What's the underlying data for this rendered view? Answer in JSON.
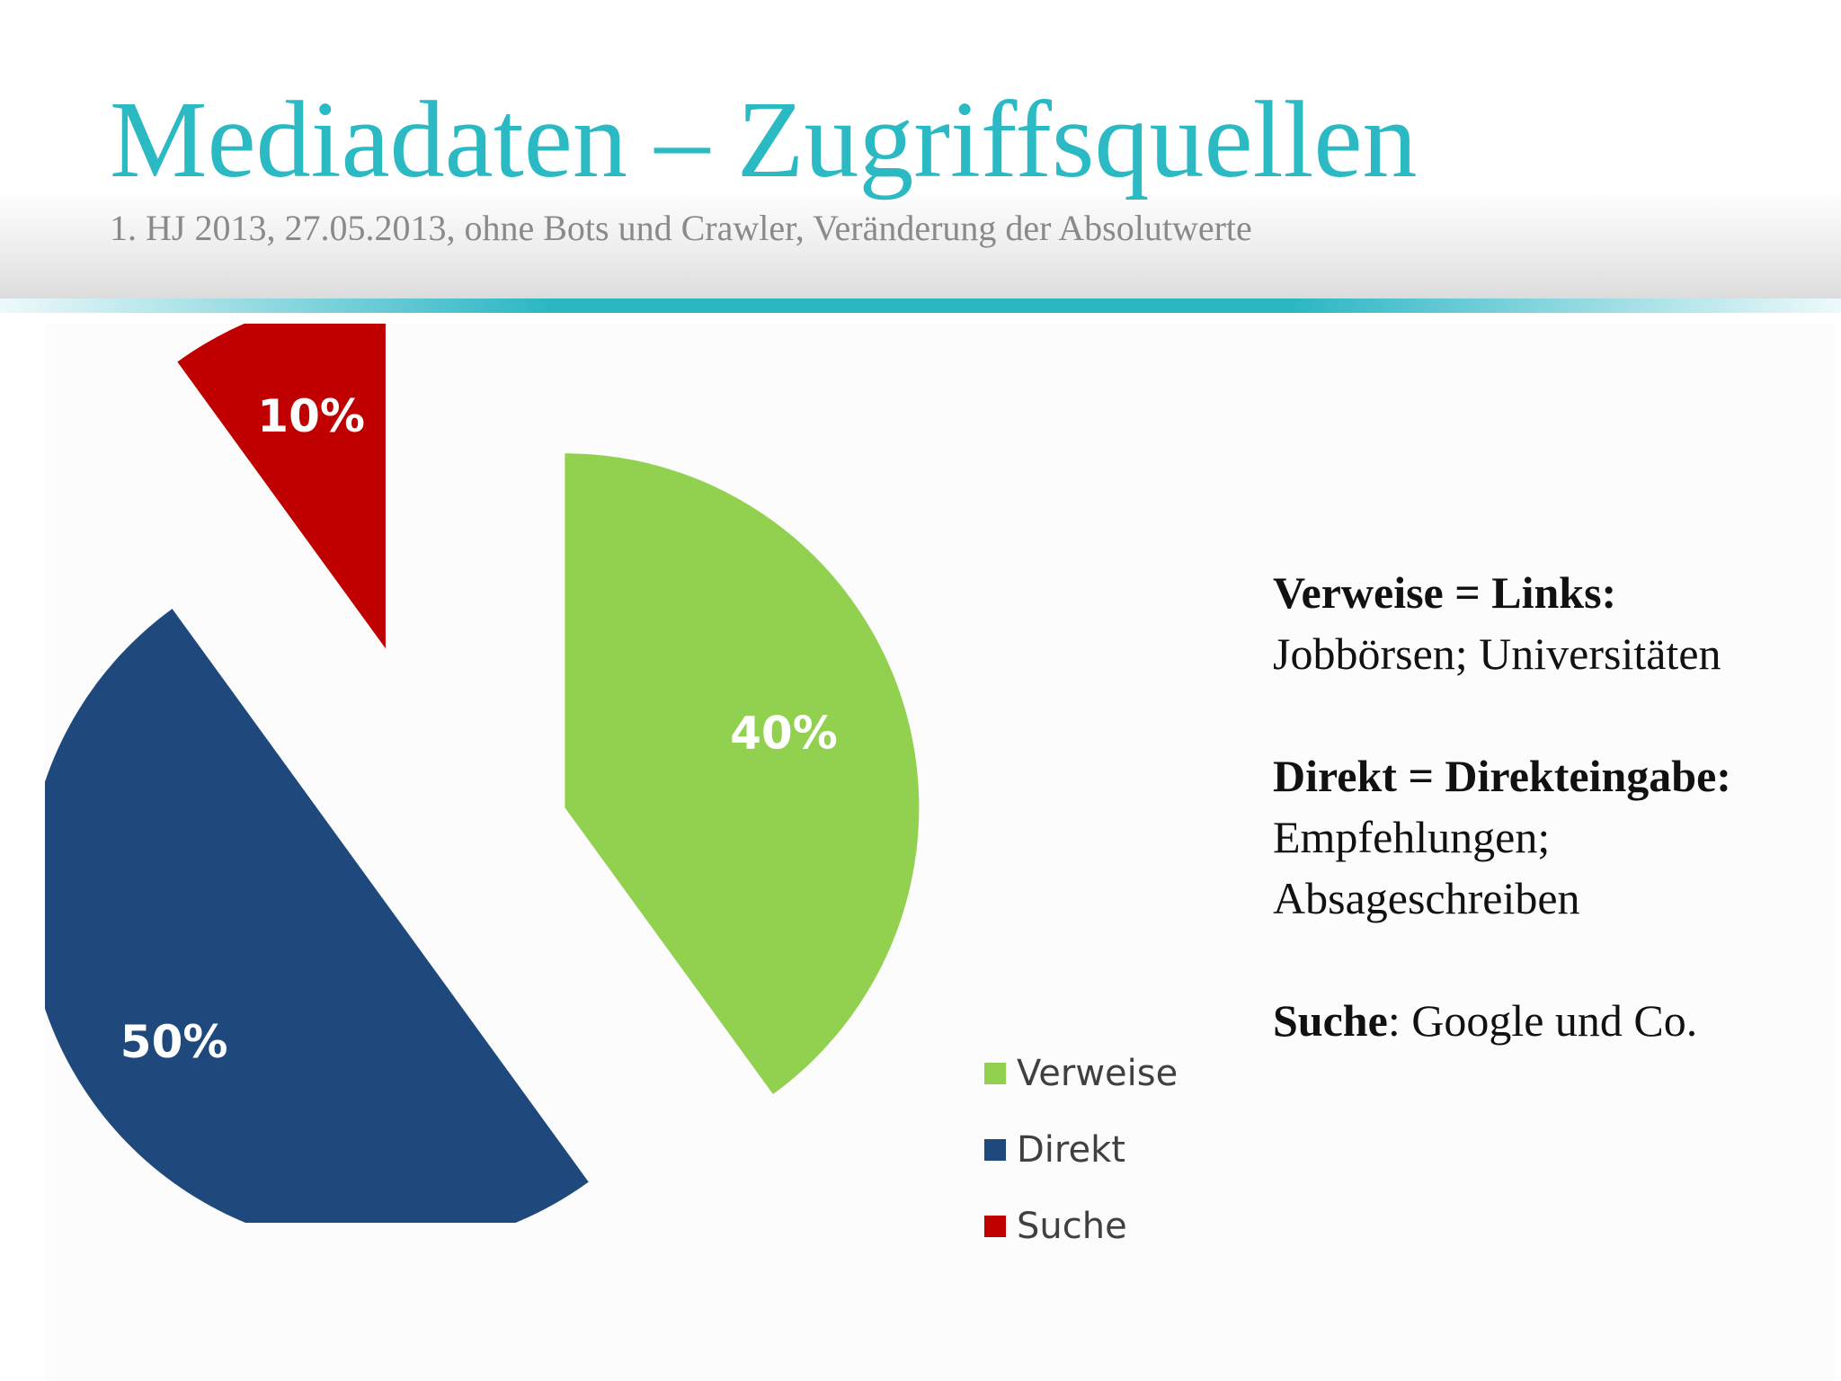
{
  "slide": {
    "title": "Mediadaten – Zugriffsquellen",
    "subtitle": "1. HJ 2013, 27.05.2013, ohne Bots und Crawler, Veränderung der Absolutwerte",
    "accent_color": "#2bb9c4"
  },
  "chart_data": {
    "type": "pie",
    "categories": [
      "Verweise",
      "Direkt",
      "Suche"
    ],
    "values": [
      40,
      50,
      10
    ],
    "labels": [
      "40%",
      "50%",
      "10%"
    ],
    "colors": [
      "#92d050",
      "#1f497d",
      "#c00000"
    ],
    "exploded": true,
    "legend_position": "right"
  },
  "notes": [
    {
      "term": "Verweise = Links:",
      "desc": "Jobbörsen; Universitäten"
    },
    {
      "term": "Direkt = Direkteingabe:",
      "desc": "Empfehlungen; Absageschreiben"
    },
    {
      "term": "Suche",
      "sep": ":",
      "desc": "Google und Co."
    }
  ]
}
